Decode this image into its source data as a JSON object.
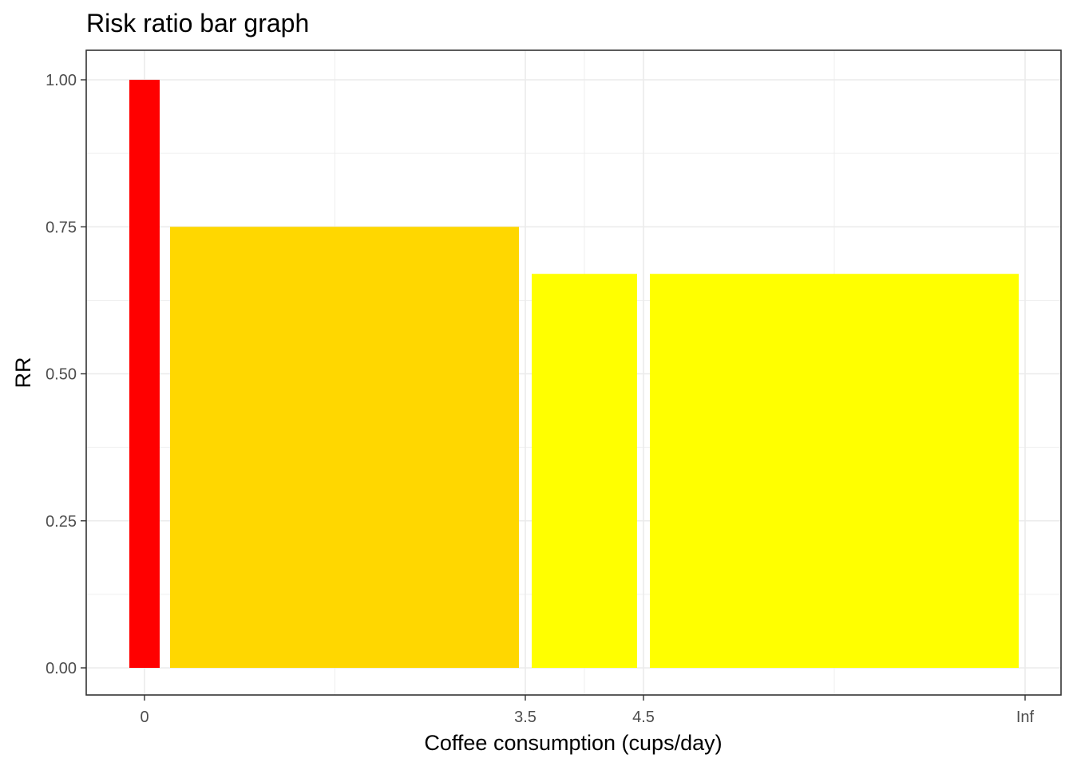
{
  "chart_data": {
    "type": "bar",
    "title": "Risk ratio bar graph",
    "xlabel": "Coffee consumption (cups/day)",
    "ylabel": "RR",
    "x_ticks": [
      "0",
      "3.5",
      "4.5",
      "Inf"
    ],
    "y_ticks": [
      "0.00",
      "0.25",
      "0.50",
      "0.75",
      "1.00"
    ],
    "ylim": [
      0,
      1
    ],
    "grid": true,
    "bars": [
      {
        "x_start": "0",
        "x_end": "0",
        "value": 1.0,
        "color": "#ff0000"
      },
      {
        "x_start": "0",
        "x_end": "3.5",
        "value": 0.75,
        "color": "#ffd700"
      },
      {
        "x_start": "3.5",
        "x_end": "4.5",
        "value": 0.67,
        "color": "#ffff00"
      },
      {
        "x_start": "4.5",
        "x_end": "Inf",
        "value": 0.67,
        "color": "#ffff00"
      }
    ]
  }
}
